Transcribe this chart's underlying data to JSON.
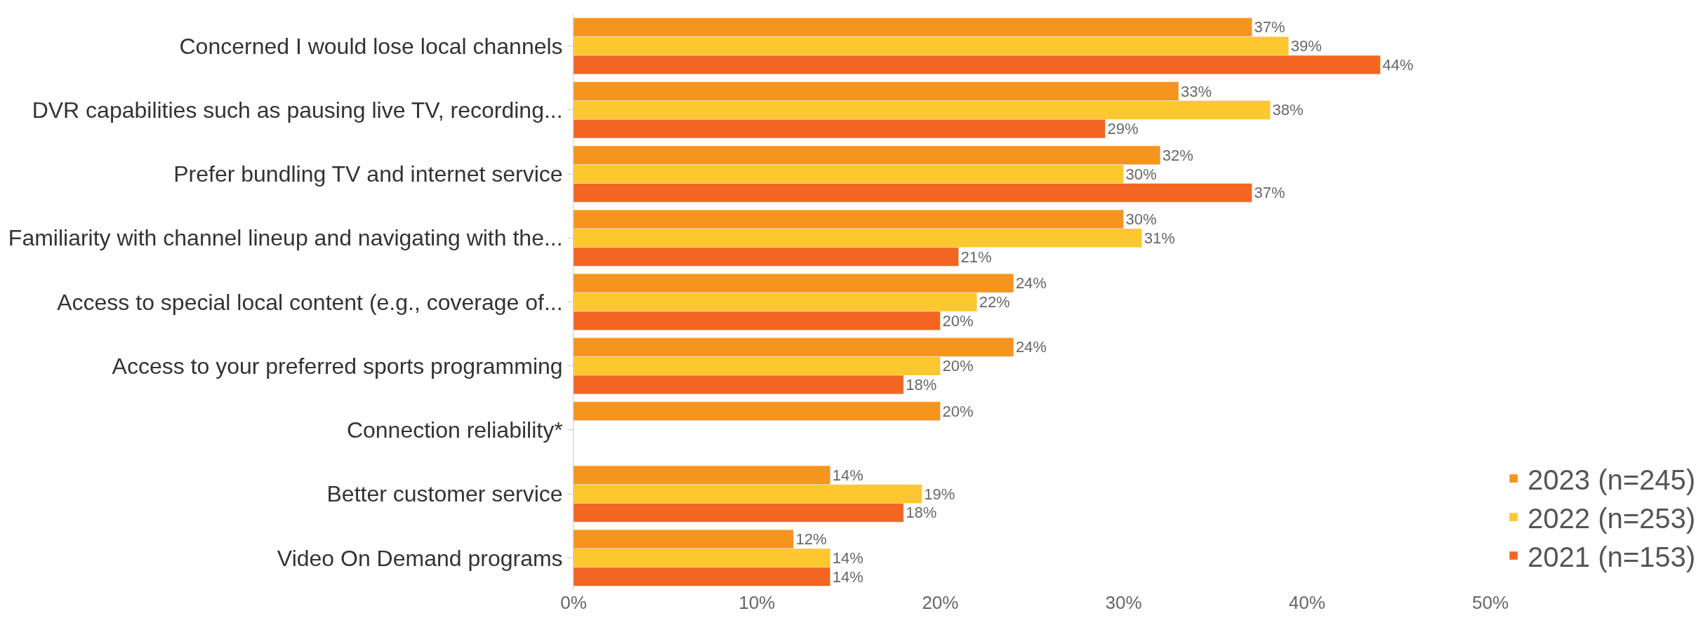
{
  "chart_data": {
    "type": "bar",
    "orientation": "horizontal",
    "categories": [
      "Concerned I would lose local channels",
      "DVR capabilities such as pausing live TV, recording...",
      "Prefer bundling TV and internet service",
      "Familiarity with channel lineup and navigating with the...",
      "Access to special local content (e.g., coverage of...",
      "Access to your preferred sports programming",
      "Connection reliability*",
      "Better customer service",
      "Video On Demand programs"
    ],
    "series": [
      {
        "name": "2023 (n=245)",
        "color": "#f7941d",
        "values": [
          37,
          33,
          32,
          30,
          24,
          24,
          20,
          14,
          12
        ],
        "value_labels": [
          "37%",
          "33%",
          "32%",
          "30%",
          "24%",
          "24%",
          "20%",
          "14%",
          "12%"
        ]
      },
      {
        "name": "2022 (n=253)",
        "color": "#fdc82f",
        "values": [
          39,
          38,
          30,
          31,
          22,
          20,
          null,
          19,
          14
        ],
        "value_labels": [
          "39%",
          "38%",
          "30%",
          "31%",
          "22%",
          "20%",
          null,
          "19%",
          "14%"
        ]
      },
      {
        "name": "2021 (n=153)",
        "color": "#f26522",
        "values": [
          44,
          29,
          37,
          21,
          20,
          18,
          null,
          18,
          14
        ],
        "value_labels": [
          "44%",
          "29%",
          "37%",
          "21%",
          "20%",
          "18%",
          null,
          "18%",
          "14%"
        ]
      }
    ],
    "xlim": [
      0,
      50
    ],
    "xticks": [
      {
        "value": 0,
        "label": "0%"
      },
      {
        "value": 10,
        "label": "10%"
      },
      {
        "value": 20,
        "label": "20%"
      },
      {
        "value": 30,
        "label": "30%"
      },
      {
        "value": 40,
        "label": "40%"
      },
      {
        "value": 50,
        "label": "50%"
      }
    ],
    "legend": "bottom right"
  }
}
